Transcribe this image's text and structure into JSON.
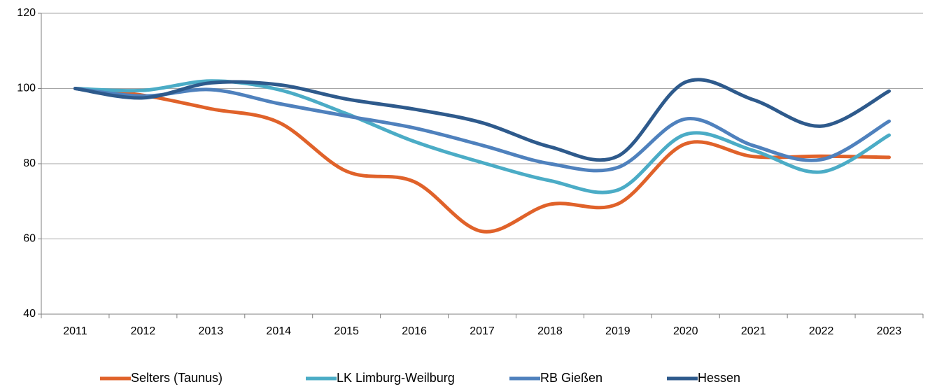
{
  "chart_data": {
    "type": "line",
    "categories": [
      "2011",
      "2012",
      "2013",
      "2014",
      "2015",
      "2016",
      "2017",
      "2018",
      "2019",
      "2020",
      "2021",
      "2022",
      "2023"
    ],
    "series": [
      {
        "name": "Selters (Taunus)",
        "color": "#e0622a",
        "values": [
          100,
          98.2,
          94.6,
          91,
          78,
          75.2,
          62,
          69.2,
          69.3,
          85.3,
          81.9,
          82,
          81.7
        ]
      },
      {
        "name": "LK Limburg-Weilburg",
        "color": "#4bacc6",
        "values": [
          100,
          99.5,
          102,
          99.7,
          93.3,
          85.9,
          80.3,
          75.5,
          73,
          87.8,
          83.5,
          77.8,
          87.6
        ]
      },
      {
        "name": "RB Gießen",
        "color": "#4f81bd",
        "values": [
          100,
          98,
          99.7,
          96,
          92.7,
          89.5,
          84.9,
          80,
          79,
          91.9,
          84.8,
          81.1,
          91.3
        ]
      },
      {
        "name": "Hessen",
        "color": "#2e5a8c",
        "values": [
          100,
          97.5,
          101.5,
          101,
          97.2,
          94.5,
          90.9,
          84.5,
          82,
          101.7,
          97,
          90,
          99.3
        ]
      }
    ],
    "ylim": [
      40,
      120
    ],
    "yticks": [
      40,
      60,
      80,
      100,
      120
    ],
    "grid": true,
    "legend": "bottom"
  }
}
